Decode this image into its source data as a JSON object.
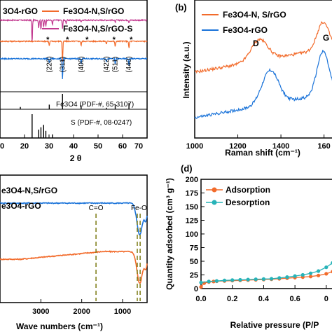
{
  "colors": {
    "orange": "#f26b2b",
    "blue": "#1a73d9",
    "magenta": "#c2398f",
    "teal": "#27b3b8",
    "olive": "#7b7a12"
  },
  "chart_data": [
    {
      "panel": "a",
      "type": "line",
      "title": "",
      "xlabel": "2 θ",
      "ylabel": "",
      "xlim": [
        10,
        70
      ],
      "x_ticks": [
        "10",
        "20",
        "30",
        "40",
        "50",
        "60",
        "70"
      ],
      "legend": [
        "Fe3O4-N,S/rGO",
        "Fe3O4-N,S/rGO-S"
      ],
      "legend_partial": "3O4-rGO",
      "legend_colors": [
        "#f26b2b",
        "#c2398f"
      ],
      "series": [
        {
          "name": "Fe3O4-N,S/rGO-S",
          "color": "#c2398f",
          "peaks": [
            [
              23.1,
              1.0
            ],
            [
              25.8,
              0.35
            ],
            [
              26.7,
              0.4
            ],
            [
              27.8,
              0.3
            ],
            [
              28.7,
              0.25
            ],
            [
              31.4,
              0.2
            ],
            [
              35.5,
              0.35
            ],
            [
              37.0,
              0.15
            ],
            [
              43.1,
              0.1
            ],
            [
              57.0,
              0.1
            ],
            [
              62.6,
              0.1
            ]
          ],
          "offset": 0.78
        },
        {
          "name": "Fe3O4-N,S/rGO",
          "color": "#f26b2b",
          "peaks": [
            [
              30.1,
              0.2
            ],
            [
              35.5,
              0.9
            ],
            [
              43.1,
              0.2
            ],
            [
              53.4,
              0.12
            ],
            [
              57.0,
              0.25
            ],
            [
              62.6,
              0.3
            ]
          ],
          "offset": 0.55
        },
        {
          "color": "#1a73d9",
          "peaks": [
            [
              30.1,
              0.2
            ],
            [
              35.5,
              0.9
            ],
            [
              43.1,
              0.2
            ],
            [
              53.4,
              0.12
            ],
            [
              57.0,
              0.25
            ],
            [
              62.6,
              0.3
            ]
          ],
          "offset": 0.36
        }
      ],
      "fe3o4_reference": [
        [
          18.3,
          0.15
        ],
        [
          30.1,
          0.3
        ],
        [
          35.5,
          1.0
        ],
        [
          43.1,
          0.25
        ],
        [
          53.4,
          0.1
        ],
        [
          57.0,
          0.3
        ],
        [
          62.6,
          0.4
        ]
      ],
      "s_reference": [
        [
          23.1,
          1.0
        ],
        [
          25.8,
          0.35
        ],
        [
          26.7,
          0.45
        ],
        [
          27.8,
          0.55
        ],
        [
          28.7,
          0.3
        ],
        [
          31.4,
          0.15
        ]
      ],
      "peak_labels": [
        {
          "text": "(220)",
          "x": 30.1
        },
        {
          "text": "(311)",
          "x": 35.5
        },
        {
          "text": "(400)",
          "x": 43.1
        },
        {
          "text": "(422)",
          "x": 53.4
        },
        {
          "text": "(511)",
          "x": 57.0
        },
        {
          "text": "(440)",
          "x": 62.6
        }
      ],
      "star_positions": [
        29.5,
        37.5,
        45.5,
        56.5,
        63.5
      ],
      "annotations": [
        "Fe3O4 (PDF-#, 65-3107)",
        "S (PDF-#, 08-0247)"
      ]
    },
    {
      "panel": "b",
      "type": "line",
      "title": "",
      "xlabel": "Raman shift (cm⁻¹)",
      "ylabel": "Intensity (a.u.)",
      "xlim": [
        1000,
        1650
      ],
      "x_ticks": [
        "1000",
        "1200",
        "1400",
        "160"
      ],
      "legend": [
        "Fe3O4-N, S/rGO",
        "Fe3O4-rGO"
      ],
      "legend_colors": [
        "#f26b2b",
        "#1a73d9"
      ],
      "band_labels": [
        {
          "text": "D",
          "x": 1300
        },
        {
          "text": "G",
          "x": 1590
        }
      ],
      "series": [
        {
          "name": "Fe3O4-N, S/rGO",
          "color": "#f26b2b",
          "base": 0.55,
          "d_peak": [
            1300,
            0.22
          ],
          "g_peak": [
            1595,
            0.28
          ]
        },
        {
          "name": "Fe3O4-rGO",
          "color": "#1a73d9",
          "base": 0.08,
          "d_peak": [
            1350,
            0.35
          ],
          "g_peak": [
            1595,
            0.45
          ]
        }
      ]
    },
    {
      "panel": "c",
      "type": "line",
      "title": "",
      "xlabel": "Wave numbers (cm⁻¹)",
      "ylabel": "",
      "xlim": [
        4000,
        400
      ],
      "x_ticks": [
        "3000",
        "2000",
        "1000"
      ],
      "legend_partial": [
        "e3O4-N,S/rGO",
        "e3O4-rGO"
      ],
      "legend_colors": [
        "#f26b2b",
        "#1a73d9"
      ],
      "band_labels": [
        {
          "text": "C=O",
          "x": 1650
        },
        {
          "text": "Fe-O",
          "x": 580
        }
      ],
      "series": [
        {
          "name": "e3O4-rGO",
          "color": "#1a73d9",
          "level": 0.78
        },
        {
          "name": "e3O4-N,S/rGO",
          "color": "#f26b2b",
          "level": 0.32
        }
      ]
    },
    {
      "panel": "d",
      "type": "line",
      "title": "",
      "xlabel": "Relative pressure (P/P",
      "ylabel": "Quantity adsorbed (cm³ g⁻¹)",
      "xlim": [
        0.0,
        0.85
      ],
      "ylim": [
        0,
        200
      ],
      "x_ticks": [
        "0.0",
        "0.2",
        "0.4",
        "0.6",
        "0"
      ],
      "y_ticks": [
        "0",
        "25",
        "50",
        "75",
        "100",
        "125",
        "150",
        "175",
        "200"
      ],
      "legend": [
        "Adsorption",
        "Desorption"
      ],
      "legend_colors": [
        "#f26b2b",
        "#27b3b8"
      ],
      "series": [
        {
          "name": "Adsorption",
          "color": "#f26b2b",
          "x": [
            0.0,
            0.02,
            0.05,
            0.08,
            0.1,
            0.15,
            0.2,
            0.25,
            0.3,
            0.35,
            0.4,
            0.45,
            0.5,
            0.55,
            0.6,
            0.65,
            0.7,
            0.75,
            0.8,
            0.84
          ],
          "y": [
            3,
            10,
            12,
            13,
            13.5,
            14,
            14.5,
            15,
            15.5,
            16,
            16.5,
            17,
            18,
            19,
            20,
            21,
            22,
            24,
            27,
            31
          ]
        },
        {
          "name": "Desorption",
          "color": "#27b3b8",
          "x": [
            0.0,
            0.05,
            0.1,
            0.15,
            0.2,
            0.25,
            0.3,
            0.35,
            0.4,
            0.45,
            0.5,
            0.55,
            0.6,
            0.65,
            0.7,
            0.75,
            0.8,
            0.84
          ],
          "y": [
            11,
            13,
            14,
            15,
            15.5,
            16,
            16.5,
            17,
            17.5,
            18,
            19.5,
            21,
            23,
            25,
            28,
            32,
            39,
            47
          ]
        }
      ]
    }
  ],
  "panel_labels": {
    "b": "(b)",
    "d": "(d)"
  }
}
